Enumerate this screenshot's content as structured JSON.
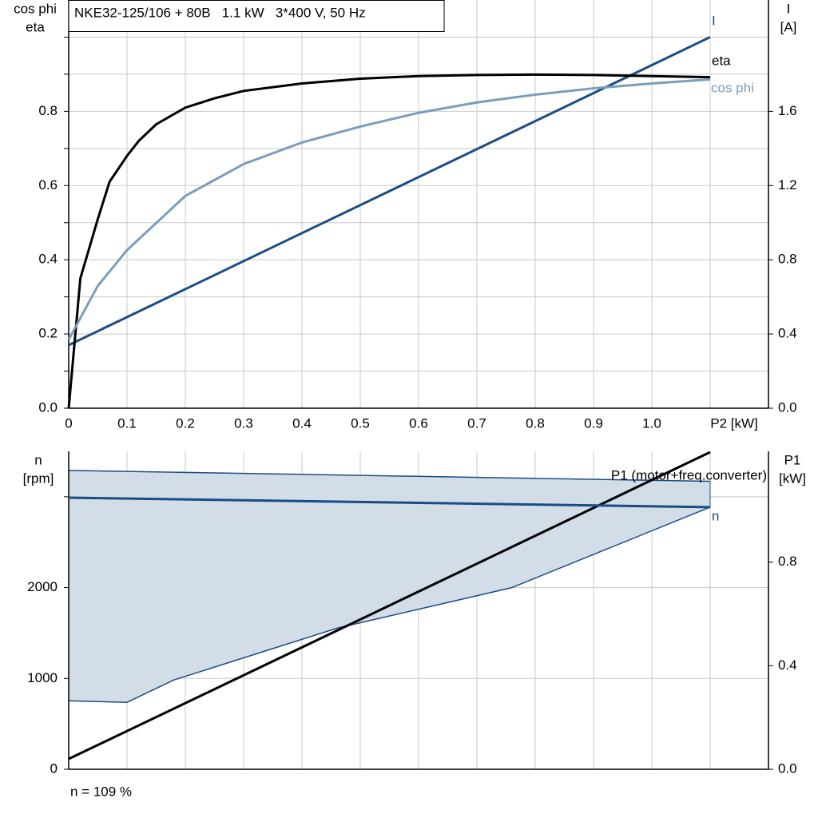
{
  "chart_data": [
    {
      "type": "line",
      "title": "NKE32-125/106 + 80B   1.1 kW   3*400 V, 50 Hz",
      "ylabel": [
        "cos phi",
        "eta"
      ],
      "y2label": [
        "I",
        "[A]"
      ],
      "xlim": [
        0,
        1.2
      ],
      "xticks": [
        0,
        0.1,
        0.2,
        0.3,
        0.4,
        0.5,
        0.6,
        0.7,
        0.8,
        0.9,
        {
          "value": 1,
          "label": "1.0"
        },
        {
          "value": 1.1,
          "label": "P2 [kW]"
        }
      ],
      "ylim": [
        0,
        1.1
      ],
      "yticks": [
        {
          "value": 0,
          "label": "0.0"
        },
        0.2,
        0.4,
        0.6,
        0.8
      ],
      "ygrid": [
        0.1,
        0.3,
        0.5,
        0.7,
        0.9,
        1.0
      ],
      "y2lim": [
        0,
        2.2
      ],
      "y2ticks": [
        {
          "value": 0,
          "label": "0.0"
        },
        0.4,
        0.8,
        1.2,
        1.6
      ],
      "series": [
        {
          "name": "I",
          "color": "#1a4d85",
          "axis": "y2",
          "x": [
            0,
            1.1
          ],
          "values": [
            0.34,
            2.0
          ]
        },
        {
          "name": "eta",
          "color": "#000000",
          "x": [
            0,
            0.02,
            0.05,
            0.07,
            0.1,
            0.12,
            0.15,
            0.2,
            0.25,
            0.3,
            0.4,
            0.5,
            0.6,
            0.7,
            0.8,
            0.9,
            1.0,
            1.1
          ],
          "values": [
            0,
            0.35,
            0.51,
            0.61,
            0.68,
            0.72,
            0.765,
            0.81,
            0.835,
            0.855,
            0.875,
            0.888,
            0.895,
            0.898,
            0.899,
            0.898,
            0.895,
            0.892
          ]
        },
        {
          "name": "cos phi",
          "color": "#7b9dbd",
          "x": [
            0,
            0.05,
            0.1,
            0.2,
            0.3,
            0.4,
            0.5,
            0.6,
            0.7,
            0.8,
            0.9,
            1.0,
            1.1
          ],
          "values": [
            0.185,
            0.33,
            0.426,
            0.572,
            0.658,
            0.716,
            0.759,
            0.796,
            0.824,
            0.845,
            0.862,
            0.875,
            0.886
          ]
        }
      ]
    },
    {
      "type": "line",
      "ylabel": [
        "n",
        "[rpm]"
      ],
      "y2label": [
        "P1",
        "[kW]"
      ],
      "xlim": [
        0,
        1.2
      ],
      "xgrid": [
        0.1,
        0.2,
        0.3,
        0.4,
        0.5,
        0.6,
        0.7,
        0.8,
        0.9,
        1.0,
        1.1
      ],
      "ylim": [
        0,
        3500
      ],
      "yticks": [
        0,
        1000,
        2000
      ],
      "ygrid": [
        3000
      ],
      "y2lim": [
        0,
        1.228
      ],
      "y2ticks": [
        {
          "value": 0,
          "label": "0.0"
        },
        0.4,
        0.8
      ],
      "band": {
        "color": "#d2dde8",
        "line_color": "#1a4d85",
        "upper": {
          "x": [
            0,
            1.1
          ],
          "values": [
            3290,
            3170
          ]
        },
        "lower": {
          "x": [
            0,
            0.1,
            0.18,
            0.46,
            0.76,
            1.1
          ],
          "values": [
            754,
            737,
            982,
            1553,
            2000,
            2886
          ]
        }
      },
      "series": [
        {
          "name": "P1 (motor+freq.converter)",
          "color": "#000000",
          "axis": "y2",
          "x": [
            0,
            1.1
          ],
          "values": [
            0.04,
            1.225
          ]
        },
        {
          "name": "n",
          "color": "#1a4d85",
          "x": [
            0,
            1.1
          ],
          "values": [
            2990,
            2885
          ]
        }
      ],
      "footnote": "n = 109 %"
    }
  ]
}
